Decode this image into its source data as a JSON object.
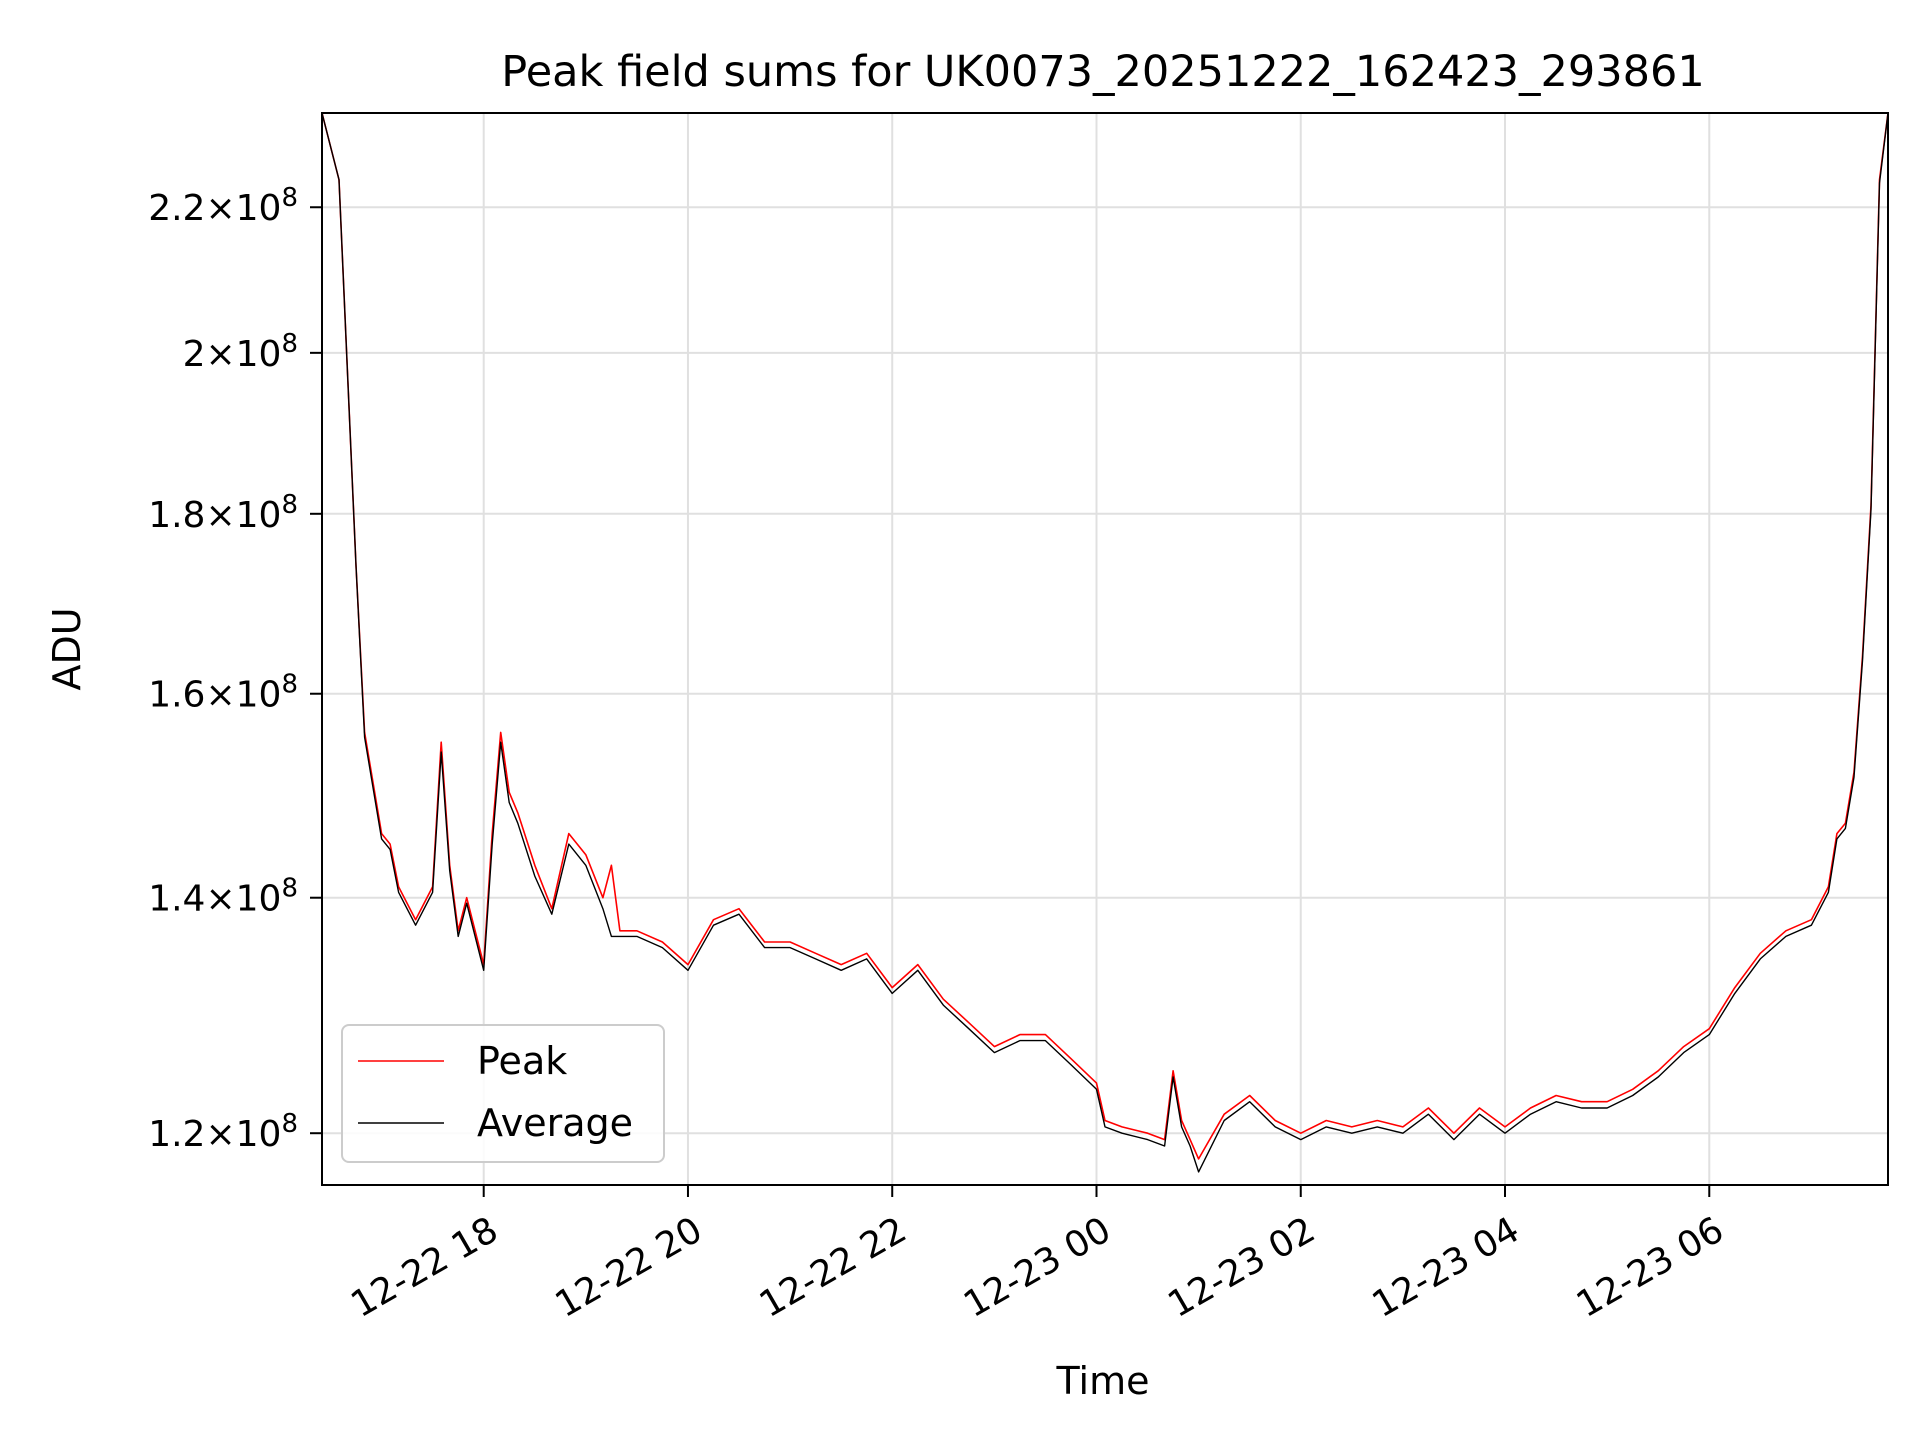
{
  "colors": {
    "peak": "#ff0000",
    "average": "#000000",
    "grid": "#e0e0e0",
    "axes": "#000000",
    "background": "#ffffff"
  },
  "chart_data": {
    "type": "line",
    "title": "Peak field sums for UK0073_20251222_162423_293861",
    "xlabel": "Time",
    "ylabel": "ADU",
    "x_scale": "time",
    "y_scale": "log",
    "xlim": [
      "2025-12-22 16:25",
      "2025-12-23 07:45"
    ],
    "ylim": [
      116000000,
      234000000
    ],
    "x_ticks": [
      {
        "value": "2025-12-22 18:00",
        "label": "12-22 18"
      },
      {
        "value": "2025-12-22 20:00",
        "label": "12-22 20"
      },
      {
        "value": "2025-12-22 22:00",
        "label": "12-22 22"
      },
      {
        "value": "2025-12-23 00:00",
        "label": "12-23 00"
      },
      {
        "value": "2025-12-23 02:00",
        "label": "12-23 02"
      },
      {
        "value": "2025-12-23 04:00",
        "label": "12-23 04"
      },
      {
        "value": "2025-12-23 06:00",
        "label": "12-23 06"
      }
    ],
    "y_ticks": [
      {
        "value": 120000000,
        "mantissa": "1.2",
        "exponent": "8"
      },
      {
        "value": 140000000,
        "mantissa": "1.4",
        "exponent": "8"
      },
      {
        "value": 160000000,
        "mantissa": "1.6",
        "exponent": "8"
      },
      {
        "value": 180000000,
        "mantissa": "1.8",
        "exponent": "8"
      },
      {
        "value": 200000000,
        "mantissa": "2",
        "exponent": "8"
      },
      {
        "value": 220000000,
        "mantissa": "2.2",
        "exponent": "8"
      }
    ],
    "grid": true,
    "legend_position": "lower-left",
    "series": [
      {
        "name": "Peak",
        "color": "#ff0000",
        "x": [
          "2025-12-22 16:25",
          "2025-12-22 16:35",
          "2025-12-22 16:45",
          "2025-12-22 16:50",
          "2025-12-22 17:00",
          "2025-12-22 17:05",
          "2025-12-22 17:10",
          "2025-12-22 17:20",
          "2025-12-22 17:30",
          "2025-12-22 17:35",
          "2025-12-22 17:40",
          "2025-12-22 17:45",
          "2025-12-22 17:50",
          "2025-12-22 18:00",
          "2025-12-22 18:05",
          "2025-12-22 18:10",
          "2025-12-22 18:15",
          "2025-12-22 18:20",
          "2025-12-22 18:30",
          "2025-12-22 18:40",
          "2025-12-22 18:50",
          "2025-12-22 19:00",
          "2025-12-22 19:10",
          "2025-12-22 19:15",
          "2025-12-22 19:20",
          "2025-12-22 19:30",
          "2025-12-22 19:45",
          "2025-12-22 20:00",
          "2025-12-22 20:15",
          "2025-12-22 20:30",
          "2025-12-22 20:45",
          "2025-12-22 21:00",
          "2025-12-22 21:15",
          "2025-12-22 21:30",
          "2025-12-22 21:45",
          "2025-12-22 22:00",
          "2025-12-22 22:15",
          "2025-12-22 22:30",
          "2025-12-22 22:45",
          "2025-12-22 23:00",
          "2025-12-22 23:15",
          "2025-12-22 23:30",
          "2025-12-22 23:45",
          "2025-12-23 00:00",
          "2025-12-23 00:05",
          "2025-12-23 00:15",
          "2025-12-23 00:30",
          "2025-12-23 00:40",
          "2025-12-23 00:45",
          "2025-12-23 00:50",
          "2025-12-23 00:55",
          "2025-12-23 01:00",
          "2025-12-23 01:15",
          "2025-12-23 01:30",
          "2025-12-23 01:45",
          "2025-12-23 02:00",
          "2025-12-23 02:15",
          "2025-12-23 02:30",
          "2025-12-23 02:45",
          "2025-12-23 03:00",
          "2025-12-23 03:15",
          "2025-12-23 03:30",
          "2025-12-23 03:45",
          "2025-12-23 04:00",
          "2025-12-23 04:15",
          "2025-12-23 04:30",
          "2025-12-23 04:45",
          "2025-12-23 05:00",
          "2025-12-23 05:15",
          "2025-12-23 05:30",
          "2025-12-23 05:45",
          "2025-12-23 06:00",
          "2025-12-23 06:15",
          "2025-12-23 06:30",
          "2025-12-23 06:45",
          "2025-12-23 07:00",
          "2025-12-23 07:10",
          "2025-12-23 07:15",
          "2025-12-23 07:20",
          "2025-12-23 07:25",
          "2025-12-23 07:30",
          "2025-12-23 07:35",
          "2025-12-23 07:40",
          "2025-12-23 07:45"
        ],
        "values": [
          234000000,
          224000000,
          174000000,
          156000000,
          146000000,
          145000000,
          141000000,
          138000000,
          141000000,
          155000000,
          143000000,
          137000000,
          140000000,
          134000000,
          146000000,
          156000000,
          150000000,
          148000000,
          143000000,
          139000000,
          146000000,
          144000000,
          140000000,
          143000000,
          137000000,
          137000000,
          136000000,
          134000000,
          138000000,
          139000000,
          136000000,
          136000000,
          135000000,
          134000000,
          135000000,
          132000000,
          134000000,
          131000000,
          129000000,
          127000000,
          128000000,
          128000000,
          126000000,
          124000000,
          121000000,
          120500000,
          120000000,
          119500000,
          125000000,
          121000000,
          119500000,
          118000000,
          121500000,
          123000000,
          121000000,
          120000000,
          121000000,
          120500000,
          121000000,
          120500000,
          122000000,
          120000000,
          122000000,
          120500000,
          122000000,
          123000000,
          122500000,
          122500000,
          123500000,
          125000000,
          127000000,
          128500000,
          132000000,
          135000000,
          137000000,
          138000000,
          141000000,
          146000000,
          147000000,
          152000000,
          164000000,
          181000000,
          224000000,
          234000000
        ]
      },
      {
        "name": "Average",
        "color": "#000000",
        "x": [
          "2025-12-22 16:25",
          "2025-12-22 16:35",
          "2025-12-22 16:45",
          "2025-12-22 16:50",
          "2025-12-22 17:00",
          "2025-12-22 17:05",
          "2025-12-22 17:10",
          "2025-12-22 17:20",
          "2025-12-22 17:30",
          "2025-12-22 17:35",
          "2025-12-22 17:40",
          "2025-12-22 17:45",
          "2025-12-22 17:50",
          "2025-12-22 18:00",
          "2025-12-22 18:05",
          "2025-12-22 18:10",
          "2025-12-22 18:15",
          "2025-12-22 18:20",
          "2025-12-22 18:30",
          "2025-12-22 18:40",
          "2025-12-22 18:50",
          "2025-12-22 19:00",
          "2025-12-22 19:10",
          "2025-12-22 19:15",
          "2025-12-22 19:20",
          "2025-12-22 19:30",
          "2025-12-22 19:45",
          "2025-12-22 20:00",
          "2025-12-22 20:15",
          "2025-12-22 20:30",
          "2025-12-22 20:45",
          "2025-12-22 21:00",
          "2025-12-22 21:15",
          "2025-12-22 21:30",
          "2025-12-22 21:45",
          "2025-12-22 22:00",
          "2025-12-22 22:15",
          "2025-12-22 22:30",
          "2025-12-22 22:45",
          "2025-12-22 23:00",
          "2025-12-22 23:15",
          "2025-12-22 23:30",
          "2025-12-22 23:45",
          "2025-12-23 00:00",
          "2025-12-23 00:05",
          "2025-12-23 00:15",
          "2025-12-23 00:30",
          "2025-12-23 00:40",
          "2025-12-23 00:45",
          "2025-12-23 00:50",
          "2025-12-23 00:55",
          "2025-12-23 01:00",
          "2025-12-23 01:15",
          "2025-12-23 01:30",
          "2025-12-23 01:45",
          "2025-12-23 02:00",
          "2025-12-23 02:15",
          "2025-12-23 02:30",
          "2025-12-23 02:45",
          "2025-12-23 03:00",
          "2025-12-23 03:15",
          "2025-12-23 03:30",
          "2025-12-23 03:45",
          "2025-12-23 04:00",
          "2025-12-23 04:15",
          "2025-12-23 04:30",
          "2025-12-23 04:45",
          "2025-12-23 05:00",
          "2025-12-23 05:15",
          "2025-12-23 05:30",
          "2025-12-23 05:45",
          "2025-12-23 06:00",
          "2025-12-23 06:15",
          "2025-12-23 06:30",
          "2025-12-23 06:45",
          "2025-12-23 07:00",
          "2025-12-23 07:10",
          "2025-12-23 07:15",
          "2025-12-23 07:20",
          "2025-12-23 07:25",
          "2025-12-23 07:30",
          "2025-12-23 07:35",
          "2025-12-23 07:40",
          "2025-12-23 07:45"
        ],
        "values": [
          234000000,
          224000000,
          174000000,
          155500000,
          145500000,
          144500000,
          140500000,
          137500000,
          140500000,
          154000000,
          142500000,
          136500000,
          139500000,
          133500000,
          145000000,
          155000000,
          149000000,
          147000000,
          142000000,
          138500000,
          145000000,
          143000000,
          139000000,
          136500000,
          136500000,
          136500000,
          135500000,
          133500000,
          137500000,
          138500000,
          135500000,
          135500000,
          134500000,
          133500000,
          134500000,
          131500000,
          133500000,
          130500000,
          128500000,
          126500000,
          127500000,
          127500000,
          125500000,
          123500000,
          120500000,
          120000000,
          119500000,
          119000000,
          124500000,
          120500000,
          119000000,
          117000000,
          121000000,
          122500000,
          120500000,
          119500000,
          120500000,
          120000000,
          120500000,
          120000000,
          121500000,
          119500000,
          121500000,
          120000000,
          121500000,
          122500000,
          122000000,
          122000000,
          123000000,
          124500000,
          126500000,
          128000000,
          131500000,
          134500000,
          136500000,
          137500000,
          140500000,
          145500000,
          146500000,
          151500000,
          163500000,
          180500000,
          223500000,
          234000000
        ]
      }
    ]
  }
}
